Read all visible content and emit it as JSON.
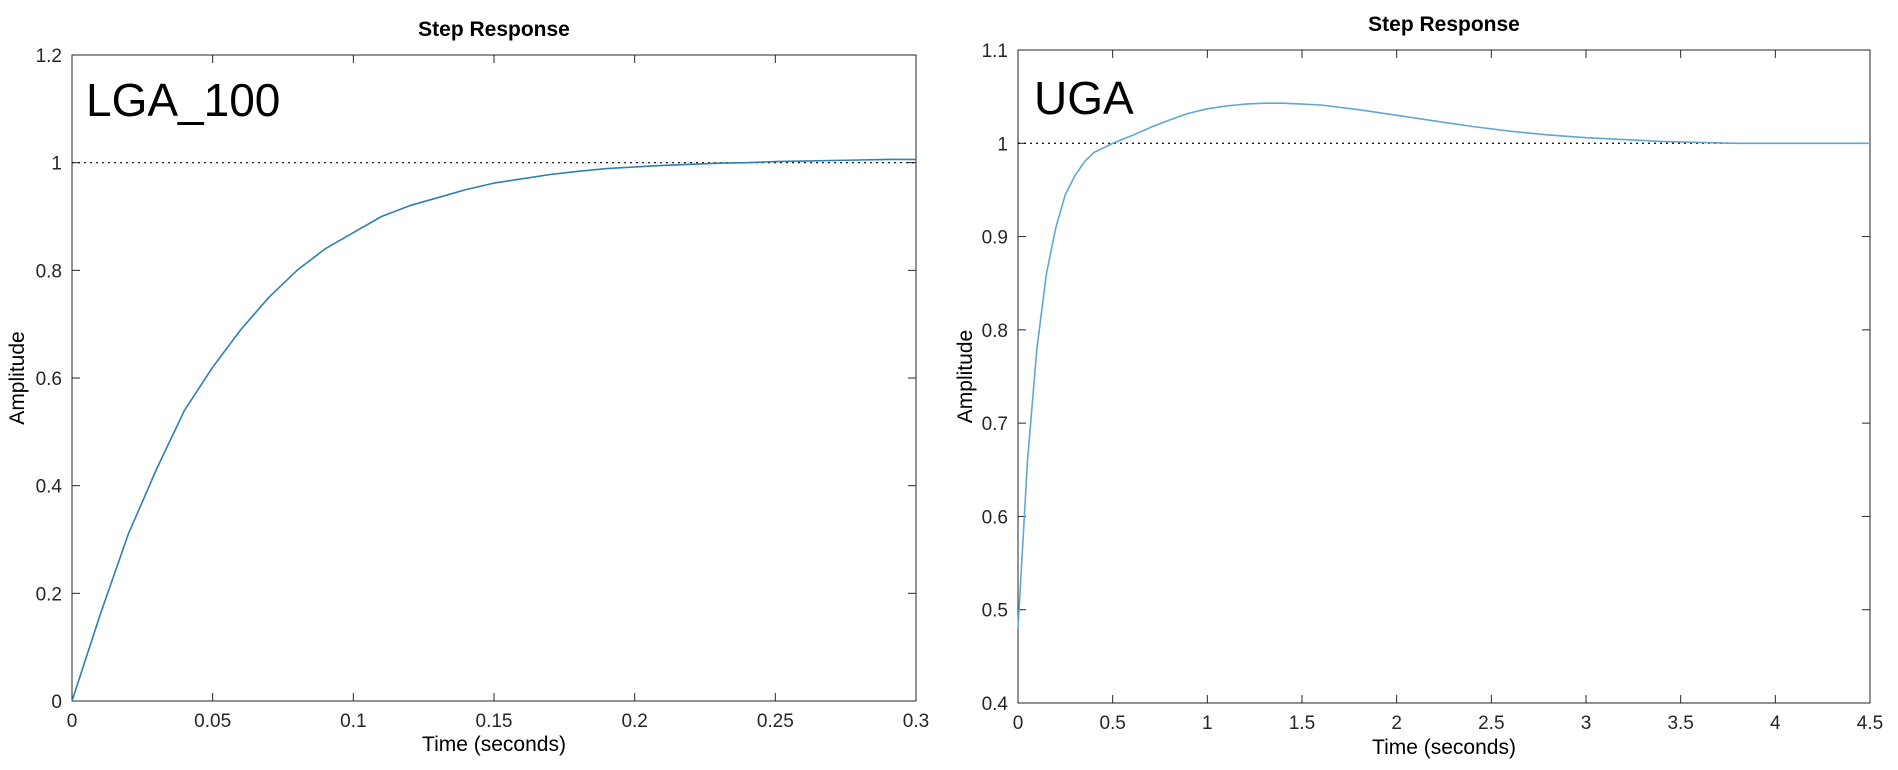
{
  "chart_data": [
    {
      "type": "line",
      "title": "Step Response",
      "xlabel": "Time (seconds)",
      "ylabel": "Amplitude",
      "annotation": "LGA_100",
      "xlim": [
        0,
        0.3
      ],
      "ylim": [
        0,
        1.2
      ],
      "xticks": [
        0,
        0.05,
        0.1,
        0.15,
        0.2,
        0.25,
        0.3
      ],
      "xtick_labels": [
        "0",
        "0.05",
        "0.1",
        "0.15",
        "0.2",
        "0.25",
        "0.3"
      ],
      "yticks": [
        0,
        0.2,
        0.4,
        0.6,
        0.8,
        1,
        1.2
      ],
      "ytick_labels": [
        "0",
        "0.2",
        "0.4",
        "0.6",
        "0.8",
        "1",
        "1.2"
      ],
      "reference_line": 1,
      "grid": false,
      "series": [
        {
          "color": "#2f7fb0",
          "x": [
            0,
            0.01,
            0.02,
            0.03,
            0.04,
            0.05,
            0.06,
            0.07,
            0.08,
            0.09,
            0.1,
            0.11,
            0.12,
            0.13,
            0.14,
            0.15,
            0.16,
            0.17,
            0.18,
            0.19,
            0.2,
            0.21,
            0.22,
            0.23,
            0.24,
            0.25,
            0.26,
            0.27,
            0.28,
            0.29,
            0.3
          ],
          "y": [
            0,
            0.16,
            0.31,
            0.43,
            0.54,
            0.62,
            0.69,
            0.75,
            0.8,
            0.84,
            0.87,
            0.9,
            0.92,
            0.935,
            0.95,
            0.962,
            0.97,
            0.978,
            0.984,
            0.989,
            0.992,
            0.995,
            0.997,
            0.999,
            1.0,
            1.002,
            1.003,
            1.004,
            1.005,
            1.006,
            1.006
          ]
        }
      ]
    },
    {
      "type": "line",
      "title": "Step Response",
      "xlabel": "Time (seconds)",
      "ylabel": "Amplitude",
      "annotation": "UGA",
      "xlim": [
        0,
        4.5
      ],
      "ylim": [
        0.4,
        1.1
      ],
      "xticks": [
        0,
        0.5,
        1,
        1.5,
        2,
        2.5,
        3,
        3.5,
        4,
        4.5
      ],
      "xtick_labels": [
        "0",
        "0.5",
        "1",
        "1.5",
        "2",
        "2.5",
        "3",
        "3.5",
        "4",
        "4.5"
      ],
      "yticks": [
        0.4,
        0.5,
        0.6,
        0.7,
        0.8,
        0.9,
        1,
        1.1
      ],
      "ytick_labels": [
        "0.4",
        "0.5",
        "0.6",
        "0.7",
        "0.8",
        "0.9",
        "1",
        "1.1"
      ],
      "reference_line": 1,
      "grid": false,
      "series": [
        {
          "color": "#5fa8d3",
          "x": [
            0,
            0.05,
            0.1,
            0.15,
            0.2,
            0.25,
            0.3,
            0.35,
            0.4,
            0.5,
            0.6,
            0.7,
            0.8,
            0.9,
            1.0,
            1.1,
            1.2,
            1.3,
            1.4,
            1.5,
            1.6,
            1.8,
            2.0,
            2.2,
            2.4,
            2.6,
            2.8,
            3.0,
            3.2,
            3.4,
            3.6,
            3.8,
            4.0,
            4.2,
            4.5
          ],
          "y": [
            0.48,
            0.66,
            0.78,
            0.86,
            0.91,
            0.945,
            0.965,
            0.98,
            0.99,
            1.0,
            1.008,
            1.017,
            1.025,
            1.032,
            1.037,
            1.04,
            1.042,
            1.043,
            1.043,
            1.042,
            1.041,
            1.036,
            1.03,
            1.024,
            1.018,
            1.013,
            1.009,
            1.006,
            1.004,
            1.002,
            1.001,
            1.0,
            1.0,
            1.0,
            1.0
          ]
        }
      ]
    }
  ]
}
